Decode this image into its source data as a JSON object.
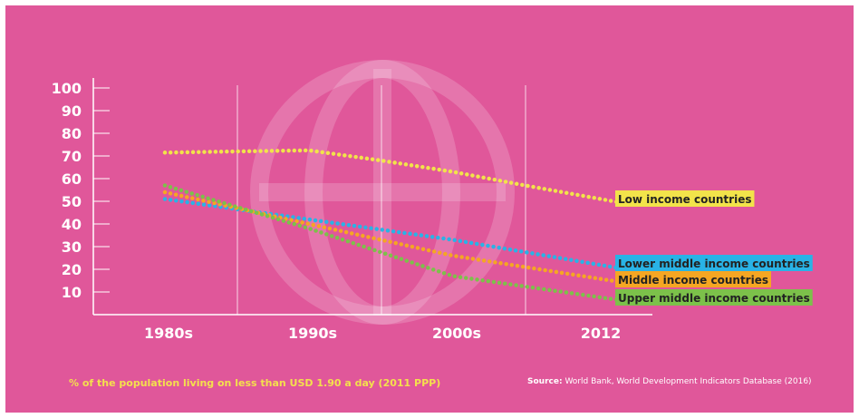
{
  "colors": {
    "background": "#e0579a",
    "axis": "#ffffff",
    "low": "#f2e34a",
    "lower_middle": "#29b3e6",
    "middle": "#f5a623",
    "upper_middle": "#7cc14a"
  },
  "caption": {
    "subtitle": "% of the population living on less than USD 1.90 a day (2011 PPP)",
    "source_label": "Source:",
    "source_text": "World Bank, World Development Indicators Database (2016)"
  },
  "chart_data": {
    "type": "line",
    "categories": [
      "1980s",
      "1990s",
      "2000s",
      "2012"
    ],
    "ylim": [
      0,
      100
    ],
    "yticks": [
      10,
      20,
      30,
      40,
      50,
      60,
      70,
      80,
      90,
      100
    ],
    "grid": "vertical lines between categories",
    "background_icon": "globe-icon",
    "series": [
      {
        "name": "Low income countries",
        "color": "#f2e34a",
        "x": [
          1980,
          1985,
          1990,
          1995,
          2000,
          2005,
          2012
        ],
        "y": [
          71.5,
          72,
          72.5,
          68,
          63,
          57,
          49
        ]
      },
      {
        "name": "Lower middle income countries",
        "color": "#29b3e6",
        "x": [
          1980,
          1990,
          2000,
          2012
        ],
        "y": [
          51,
          42,
          33,
          20
        ]
      },
      {
        "name": "Middle income countries",
        "color": "#f5a623",
        "x": [
          1980,
          1990,
          2000,
          2012
        ],
        "y": [
          54,
          40,
          26,
          14
        ]
      },
      {
        "name": "Upper middle income countries",
        "color": "#7cc14a",
        "x": [
          1980,
          1990,
          2000,
          2012
        ],
        "y": [
          57,
          38,
          17,
          6
        ]
      }
    ]
  }
}
